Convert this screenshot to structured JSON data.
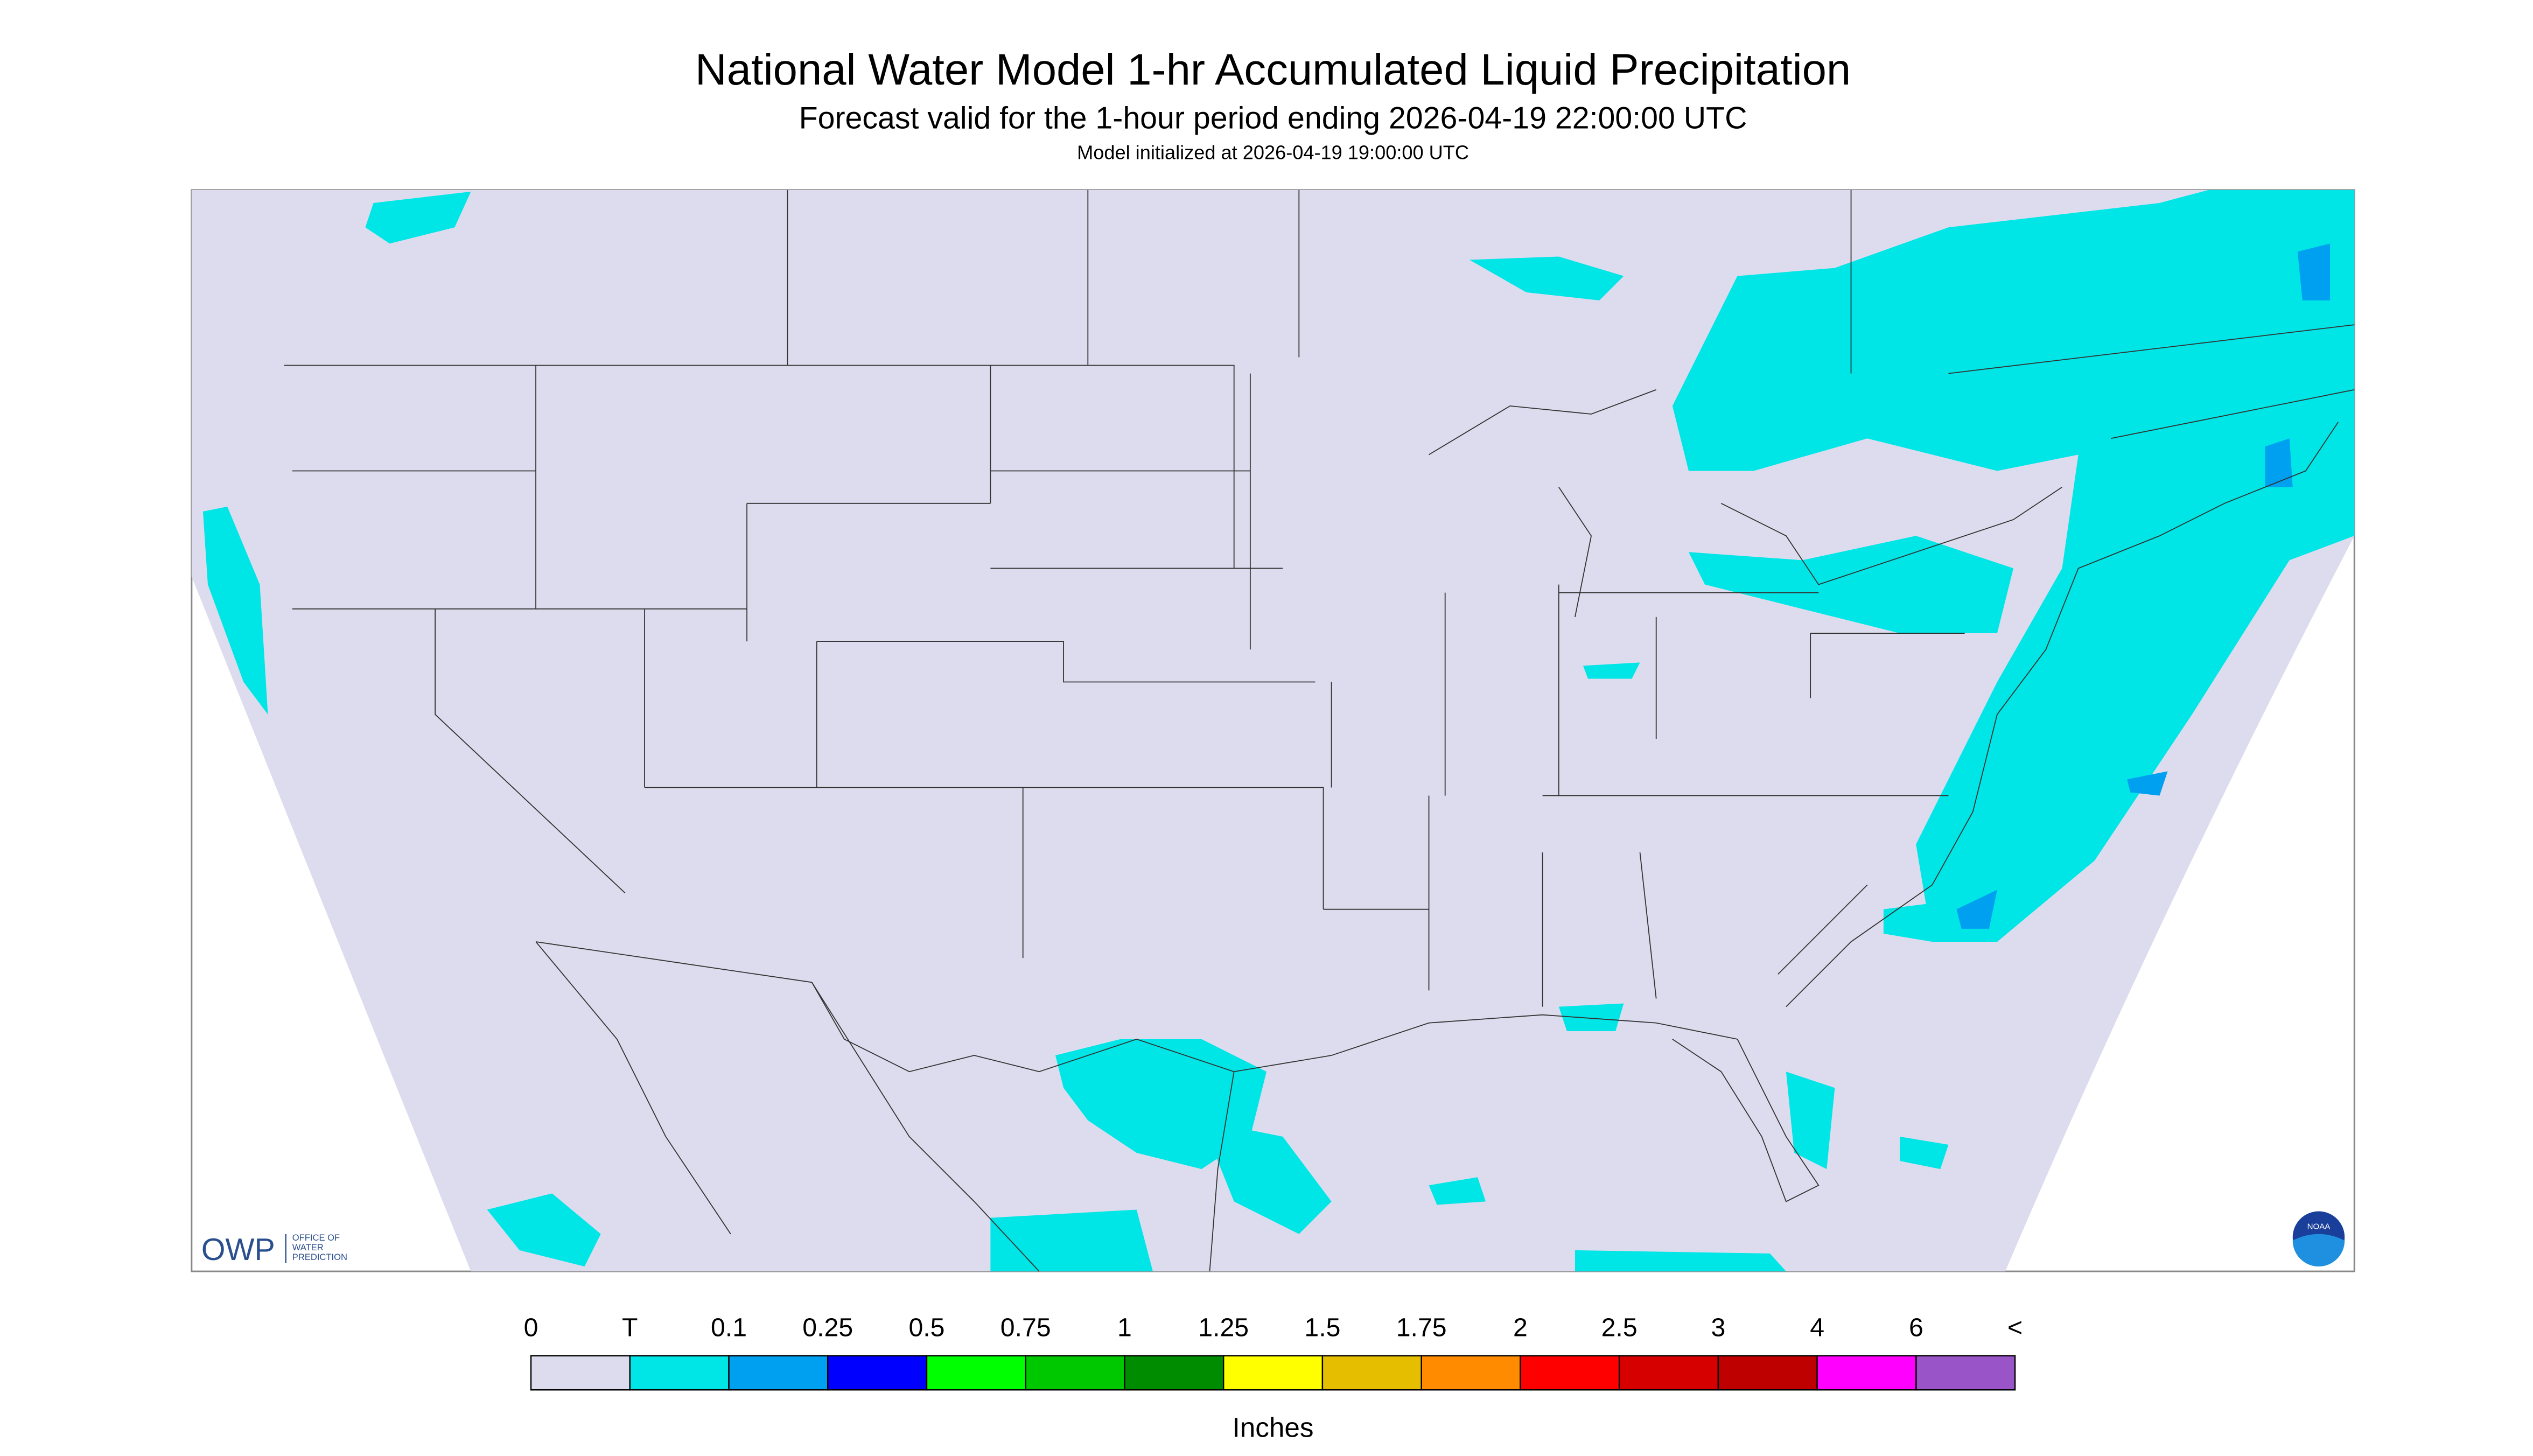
{
  "header": {
    "title": "National Water Model 1-hr Accumulated Liquid Precipitation",
    "subtitle": "Forecast valid for the 1-hour period ending 2026-04-19 22:00:00 UTC",
    "note": "Model initialized at 2026-04-19 19:00:00 UTC"
  },
  "legend": {
    "labels": [
      "0",
      "T",
      "0.1",
      "0.25",
      "0.5",
      "0.75",
      "1",
      "1.25",
      "1.5",
      "1.75",
      "2",
      "2.5",
      "3",
      "4",
      "6",
      "<"
    ],
    "colors": [
      "#dcdcee",
      "#00e5e5",
      "#00a0f0",
      "#0000ff",
      "#00ff00",
      "#00c800",
      "#008c00",
      "#ffff00",
      "#e6be00",
      "#ff8c00",
      "#ff0000",
      "#d70000",
      "#be0000",
      "#ff00ff",
      "#9955c8"
    ],
    "unit": "Inches"
  },
  "logos": {
    "owp": "OWP",
    "owp_lines": [
      "OFFICE OF",
      "WATER",
      "PREDICTION"
    ],
    "noaa": "NOAA"
  }
}
